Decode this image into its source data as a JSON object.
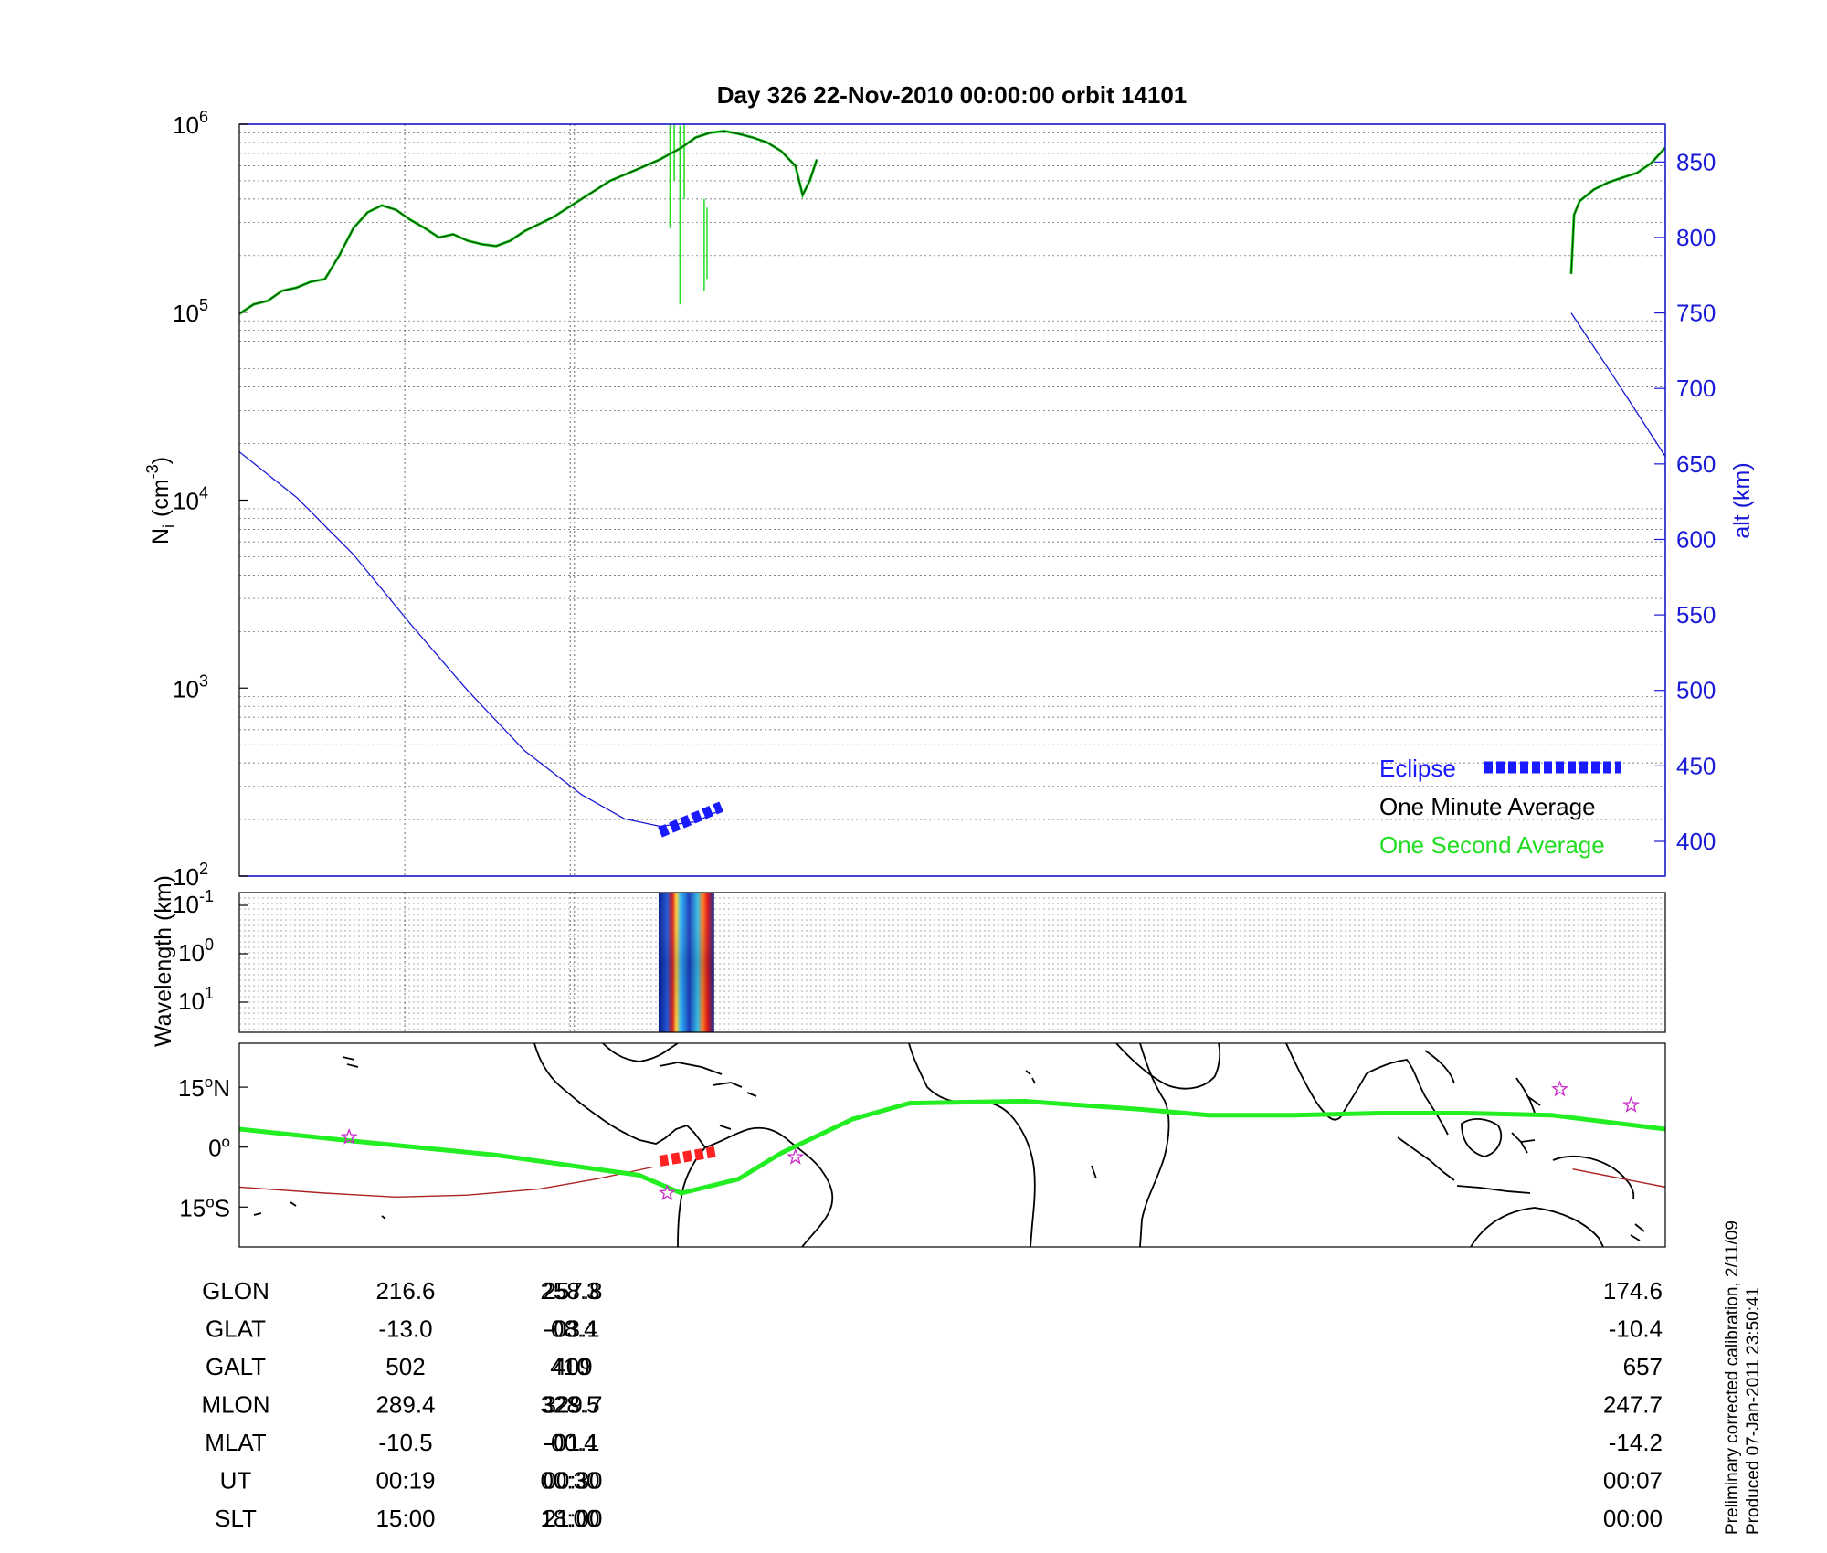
{
  "title": "Day 326  22-Nov-2010 00:00:00   orbit 14101",
  "colors": {
    "axis": "#000000",
    "alt_axis": "#1a1ad6",
    "one_minute": "#0a4a0a",
    "one_second": "#22dd22",
    "eclipse": "#1a1aff",
    "track": "#22ee22",
    "footprint": "#aa2222",
    "eclipse_map": "#ff2222",
    "star": "#cc33cc"
  },
  "chart_data": [
    {
      "id": "density",
      "type": "line",
      "ylabel": "N_i (cm^-3)",
      "ylabel_main": "N",
      "ylabel_sub": "i",
      "ylabel_unit": "(cm",
      "ylabel_unit_exp": "-3",
      "ylabel_unit_close": ")",
      "yscale": "log",
      "ylim": [
        100,
        1000000
      ],
      "yticks": [
        {
          "value": 1000000,
          "base": "10",
          "exp": "6"
        },
        {
          "value": 100000,
          "base": "10",
          "exp": "5"
        },
        {
          "value": 10000,
          "base": "10",
          "exp": "4"
        },
        {
          "value": 1000,
          "base": "10",
          "exp": "3"
        },
        {
          "value": 100,
          "base": "10",
          "exp": "2"
        }
      ],
      "y2label": "alt (km)",
      "y2lim": [
        377,
        875
      ],
      "y2ticks": [
        {
          "value": 850,
          "label": "850"
        },
        {
          "value": 800,
          "label": "800"
        },
        {
          "value": 750,
          "label": "750"
        },
        {
          "value": 700,
          "label": "700"
        },
        {
          "value": 650,
          "label": "650"
        },
        {
          "value": 600,
          "label": "600"
        },
        {
          "value": 550,
          "label": "550"
        },
        {
          "value": 500,
          "label": "500"
        },
        {
          "value": 450,
          "label": "450"
        },
        {
          "value": 400,
          "label": "400"
        }
      ],
      "xlim": [
        0,
        100
      ],
      "grid": true,
      "series": [
        {
          "name": "One Minute Average",
          "segments": [
            [
              [
                0,
                98000
              ],
              [
                1,
                110000
              ],
              [
                2,
                115000
              ],
              [
                3,
                130000
              ],
              [
                4,
                135000
              ],
              [
                5,
                145000
              ],
              [
                6,
                150000
              ],
              [
                7,
                200000
              ],
              [
                8,
                280000
              ],
              [
                9,
                340000
              ],
              [
                10,
                370000
              ],
              [
                11,
                350000
              ],
              [
                12,
                310000
              ],
              [
                13,
                280000
              ],
              [
                14,
                250000
              ],
              [
                15,
                260000
              ],
              [
                16,
                240000
              ],
              [
                17,
                230000
              ],
              [
                18,
                225000
              ],
              [
                19,
                240000
              ],
              [
                20,
                270000
              ],
              [
                22,
                320000
              ],
              [
                24,
                400000
              ],
              [
                26,
                500000
              ],
              [
                28,
                580000
              ],
              [
                29.5,
                650000
              ],
              [
                31,
                750000
              ],
              [
                32,
                850000
              ],
              [
                33,
                900000
              ],
              [
                34,
                920000
              ],
              [
                35,
                890000
              ],
              [
                36,
                850000
              ],
              [
                37,
                800000
              ],
              [
                38,
                720000
              ],
              [
                39,
                600000
              ],
              [
                39.5,
                420000
              ],
              [
                40,
                500000
              ],
              [
                40.5,
                650000
              ]
            ],
            [
              [
                93.4,
                160000
              ],
              [
                93.6,
                330000
              ],
              [
                94,
                390000
              ],
              [
                95,
                450000
              ],
              [
                96,
                490000
              ],
              [
                97,
                520000
              ],
              [
                98,
                550000
              ],
              [
                99,
                620000
              ],
              [
                100,
                750000
              ]
            ]
          ]
        },
        {
          "name": "One Second Average",
          "spikes": [
            {
              "x": 30.2,
              "low": 280000,
              "high": 1000000
            },
            {
              "x": 30.5,
              "low": 500000,
              "high": 1000000
            },
            {
              "x": 30.9,
              "low": 110000,
              "high": 980000
            },
            {
              "x": 31.2,
              "low": 400000,
              "high": 1000000
            },
            {
              "x": 32.6,
              "low": 130000,
              "high": 400000
            },
            {
              "x": 32.8,
              "low": 150000,
              "high": 360000
            }
          ]
        },
        {
          "name": "alt (km)",
          "axis": "y2",
          "segments": [
            [
              [
                0,
                658
              ],
              [
                4,
                628
              ],
              [
                8,
                590
              ],
              [
                12,
                544
              ],
              [
                16,
                500
              ],
              [
                20,
                460
              ],
              [
                24,
                431
              ],
              [
                27,
                415
              ],
              [
                29.5,
                410
              ],
              [
                32,
                413
              ],
              [
                33.8,
                421
              ]
            ],
            [
              [
                93.4,
                750
              ],
              [
                96.5,
                706
              ],
              [
                100,
                655
              ]
            ]
          ]
        }
      ],
      "eclipse_segment": {
        "x": [
          29.5,
          33.8
        ],
        "alt": [
          406,
          423
        ]
      },
      "legend": {
        "placement": "lower-right",
        "entries": [
          "Eclipse",
          "One Minute Average",
          "One Second Average"
        ]
      }
    },
    {
      "id": "wavelength",
      "type": "heatmap",
      "ylabel": "Wavelength (km)",
      "yticks": [
        {
          "base": "10",
          "exp": "-1"
        },
        {
          "base": "10",
          "exp": "0"
        },
        {
          "base": "10",
          "exp": "1"
        }
      ],
      "xrange_with_data": [
        29.4,
        33.3
      ]
    },
    {
      "id": "map",
      "type": "line",
      "yticks": [
        {
          "value": 15,
          "label": "15",
          "deg": "o",
          "hem": "N"
        },
        {
          "value": 0,
          "label": "0",
          "deg": "o",
          "hem": ""
        },
        {
          "value": -15,
          "label": "15",
          "deg": "o",
          "hem": "S"
        }
      ],
      "ylim": [
        -25,
        26
      ],
      "magnetic_equator": [
        [
          0,
          4.5
        ],
        [
          8,
          1.5
        ],
        [
          18,
          -2
        ],
        [
          28,
          -7
        ],
        [
          31,
          -11.5
        ],
        [
          35,
          -8
        ],
        [
          38,
          -1.5
        ],
        [
          43,
          7
        ],
        [
          47,
          11
        ],
        [
          55,
          11.5
        ],
        [
          63,
          9.5
        ],
        [
          68,
          8
        ],
        [
          74,
          8
        ],
        [
          80,
          8.5
        ],
        [
          86,
          8.5
        ],
        [
          92,
          8
        ],
        [
          100,
          4.5
        ]
      ],
      "footprint": [
        [
          0,
          -10
        ],
        [
          6,
          -11.5
        ],
        [
          11,
          -12.5
        ],
        [
          16,
          -12
        ],
        [
          21,
          -10.5
        ],
        [
          25,
          -8
        ],
        [
          29,
          -5
        ]
      ],
      "footprint_east": [
        [
          93.5,
          -5.5
        ],
        [
          100,
          -10
        ]
      ],
      "eclipse_track": {
        "x": [
          29.5,
          33.6
        ],
        "lat": [
          -3.5,
          -1
        ]
      },
      "stars": [
        {
          "x": 7.7,
          "lat": 2.5
        },
        {
          "x": 30.0,
          "lat": -11.5
        },
        {
          "x": 39.0,
          "lat": -2.5
        },
        {
          "x": 92.6,
          "lat": 14.5
        },
        {
          "x": 97.6,
          "lat": 10.5
        }
      ]
    }
  ],
  "time_markers": [
    11.6,
    23.2,
    23.5
  ],
  "info_table": {
    "rows": [
      {
        "label": "GLON",
        "v1": "216.6",
        "v2": "258.3",
        "v2b": "257.8",
        "v3": "174.6"
      },
      {
        "label": "GLAT",
        "v1": "-13.0",
        "v2": "-08.4",
        "v2b": "-03.1",
        "v3": "-10.4"
      },
      {
        "label": "GALT",
        "v1": "502",
        "v2": "410",
        "v2b": "409",
        "v3": "657"
      },
      {
        "label": "MLON",
        "v1": "289.4",
        "v2": "328.5",
        "v2b": "329.7",
        "v3": "247.7"
      },
      {
        "label": "MLAT",
        "v1": "-10.5",
        "v2": "-00.4",
        "v2b": "-01.1",
        "v3": "-14.2"
      },
      {
        "label": "UT",
        "v1": "00:19",
        "v2": "00:30",
        "v2b": "00:30",
        "v3": "00:07"
      },
      {
        "label": "SLT",
        "v1": "15:00",
        "v2": "18:00",
        "v2b": "21:00",
        "v3": "00:00"
      }
    ]
  },
  "footer": {
    "line1": "Preliminary corrected calibration, 2/11/09",
    "line2": "Produced 07-Jan-2011 23:50:41"
  }
}
